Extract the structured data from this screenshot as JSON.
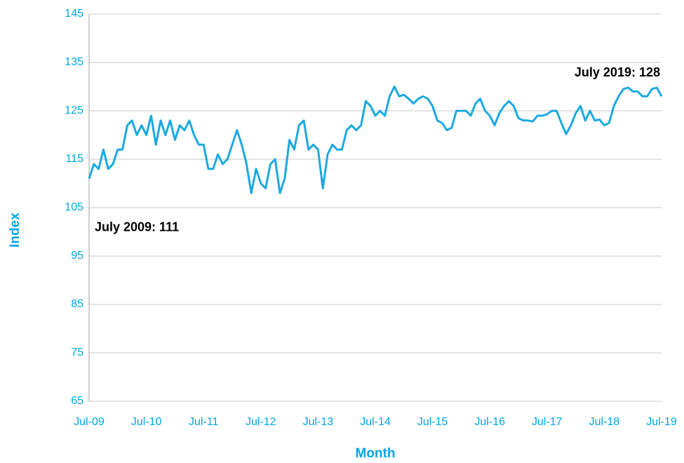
{
  "chart_data": {
    "type": "line",
    "x_label": "Month",
    "y_label": "Index",
    "categories": [
      "Jul-09",
      null,
      null,
      null,
      null,
      null,
      null,
      null,
      null,
      null,
      null,
      null,
      "Jul-10",
      null,
      null,
      null,
      null,
      null,
      null,
      null,
      null,
      null,
      null,
      null,
      "Jul-11",
      null,
      null,
      null,
      null,
      null,
      null,
      null,
      null,
      null,
      null,
      null,
      "Jul-12",
      null,
      null,
      null,
      null,
      null,
      null,
      null,
      null,
      null,
      null,
      null,
      "Jul-13",
      null,
      null,
      null,
      null,
      null,
      null,
      null,
      null,
      null,
      null,
      null,
      "Jul-14",
      null,
      null,
      null,
      null,
      null,
      null,
      null,
      null,
      null,
      null,
      null,
      "Jul-15",
      null,
      null,
      null,
      null,
      null,
      null,
      null,
      null,
      null,
      null,
      null,
      "Jul-16",
      null,
      null,
      null,
      null,
      null,
      null,
      null,
      null,
      null,
      null,
      null,
      "Jul-17",
      null,
      null,
      null,
      null,
      null,
      null,
      null,
      null,
      null,
      null,
      null,
      "Jul-18",
      null,
      null,
      null,
      null,
      null,
      null,
      null,
      null,
      null,
      null,
      null,
      "Jul-19"
    ],
    "series": [
      {
        "name": "Index",
        "color": "#1ba9e1",
        "values": [
          111,
          114,
          113,
          117,
          113,
          114,
          117,
          117,
          122,
          123,
          120,
          122,
          120,
          124,
          118,
          123,
          120,
          123,
          119,
          122,
          121,
          123,
          120,
          118,
          118,
          113,
          113,
          116,
          114,
          115,
          118,
          121,
          118,
          114,
          108,
          113,
          110,
          109,
          114,
          115,
          108,
          111,
          119,
          117,
          122,
          123,
          117,
          118,
          117,
          109,
          116,
          118,
          117,
          117,
          121,
          122,
          121,
          122,
          127,
          126,
          124,
          125,
          124,
          128,
          130,
          128,
          128.3,
          127.5,
          126.5,
          127.5,
          128,
          127.5,
          126,
          123,
          122.5,
          121,
          121.5,
          125,
          125,
          125,
          124,
          126.5,
          127.5,
          125,
          124,
          122,
          124.5,
          126,
          127,
          126,
          123.5,
          123,
          123,
          122.8,
          124,
          124,
          124.3,
          125,
          125,
          122.5,
          120.2,
          122,
          124.5,
          126,
          123,
          125,
          123,
          123.2,
          122,
          122.5,
          126,
          128,
          129.5,
          129.8,
          129,
          129,
          128,
          128,
          129.5,
          129.8,
          128
        ]
      }
    ],
    "annotations": [
      {
        "text": "July 2009: 111",
        "index": 0
      },
      {
        "text": "July 2019: 128",
        "index": 120
      }
    ],
    "ylim": [
      65,
      145
    ],
    "yticks": [
      65,
      75,
      85,
      95,
      105,
      115,
      125,
      135,
      145
    ],
    "grid": true
  }
}
